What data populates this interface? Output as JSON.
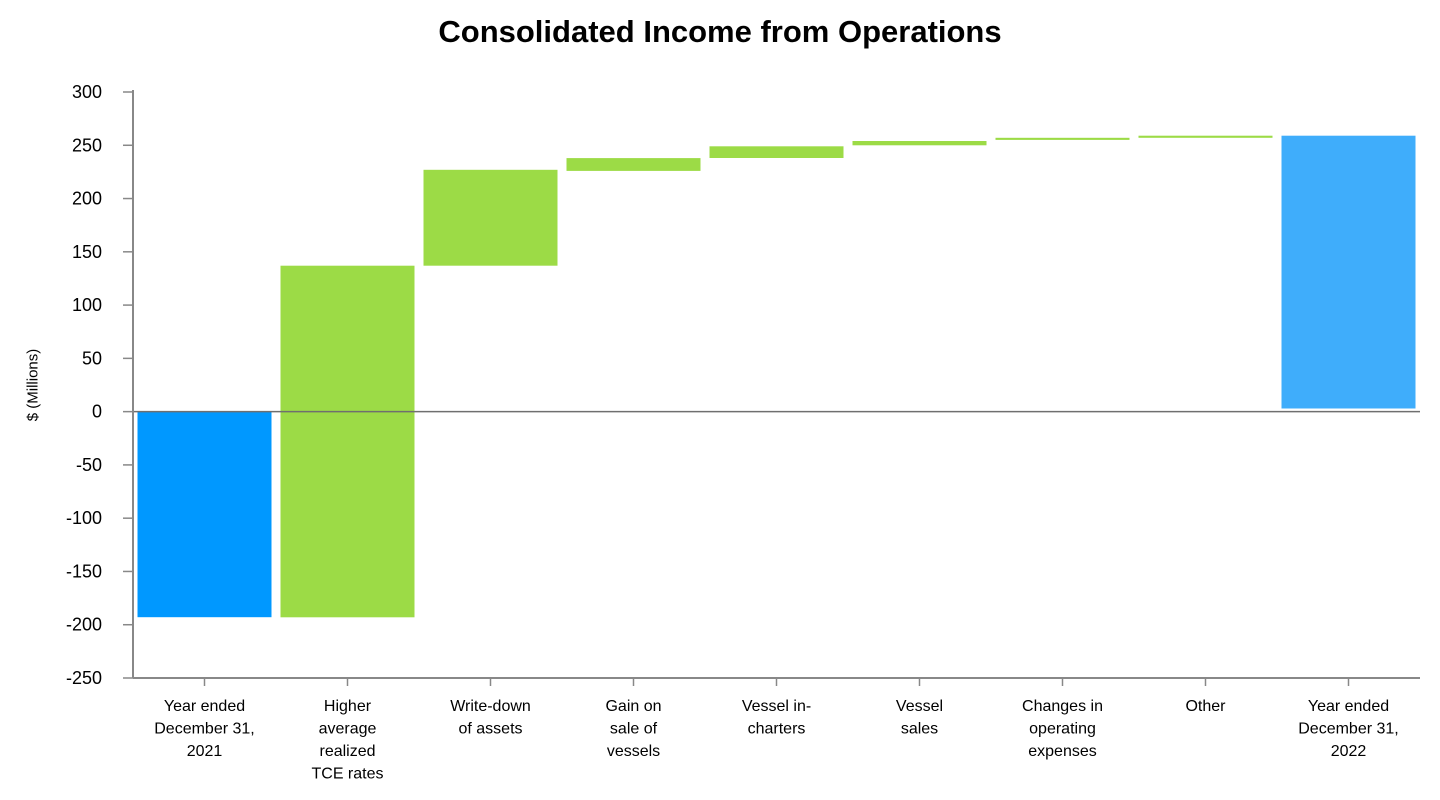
{
  "chart_data": {
    "type": "waterfall",
    "title": "Consolidated Income from Operations",
    "xlabel": "",
    "ylabel": "$ (Millions)",
    "ylim": [
      -250,
      300
    ],
    "yticks": [
      300,
      250,
      200,
      150,
      100,
      50,
      0,
      -50,
      -100,
      -150,
      -200,
      -250
    ],
    "grid": false,
    "legend": "none",
    "categories": [
      "Year ended December 31, 2021",
      "Higher average realized TCE rates",
      "Write-down of assets",
      "Gain on sale of vessels",
      "Vessel in-charters",
      "Vessel sales",
      "Changes in operating expenses",
      "Other",
      "Year ended December 31, 2022"
    ],
    "category_lines": [
      [
        "Year ended",
        "December 31,",
        "2021"
      ],
      [
        "Higher",
        "average",
        "realized",
        "TCE rates"
      ],
      [
        "Write-down",
        "of assets"
      ],
      [
        "Gain on",
        "sale of",
        "vessels"
      ],
      [
        "Vessel in-",
        "charters"
      ],
      [
        "Vessel",
        "sales"
      ],
      [
        "Changes in",
        "operating",
        "expenses"
      ],
      [
        "Other"
      ],
      [
        "Year ended",
        "December 31,",
        "2022"
      ]
    ],
    "bars": [
      {
        "kind": "total",
        "start": 0,
        "end": -193,
        "color": "#0098ff"
      },
      {
        "kind": "change",
        "start": -193,
        "end": 137,
        "color": "#9cdb46"
      },
      {
        "kind": "change",
        "start": 137,
        "end": 227,
        "color": "#9cdb46"
      },
      {
        "kind": "change",
        "start": 226,
        "end": 238,
        "color": "#9cdb46"
      },
      {
        "kind": "change",
        "start": 238,
        "end": 249,
        "color": "#9cdb46"
      },
      {
        "kind": "change",
        "start": 250,
        "end": 254,
        "color": "#9cdb46"
      },
      {
        "kind": "change",
        "start": 255,
        "end": 257,
        "color": "#9cdb46"
      },
      {
        "kind": "change",
        "start": 257,
        "end": 259,
        "color": "#9cdb46"
      },
      {
        "kind": "total",
        "start": 3,
        "end": 259,
        "color": "#3fadfb"
      }
    ],
    "colors": {
      "total_2021": "#0098ff",
      "increase": "#9cdb46",
      "total_2022": "#3fadfb",
      "axis": "#888888",
      "zero_line": "#6f6f6f"
    }
  }
}
